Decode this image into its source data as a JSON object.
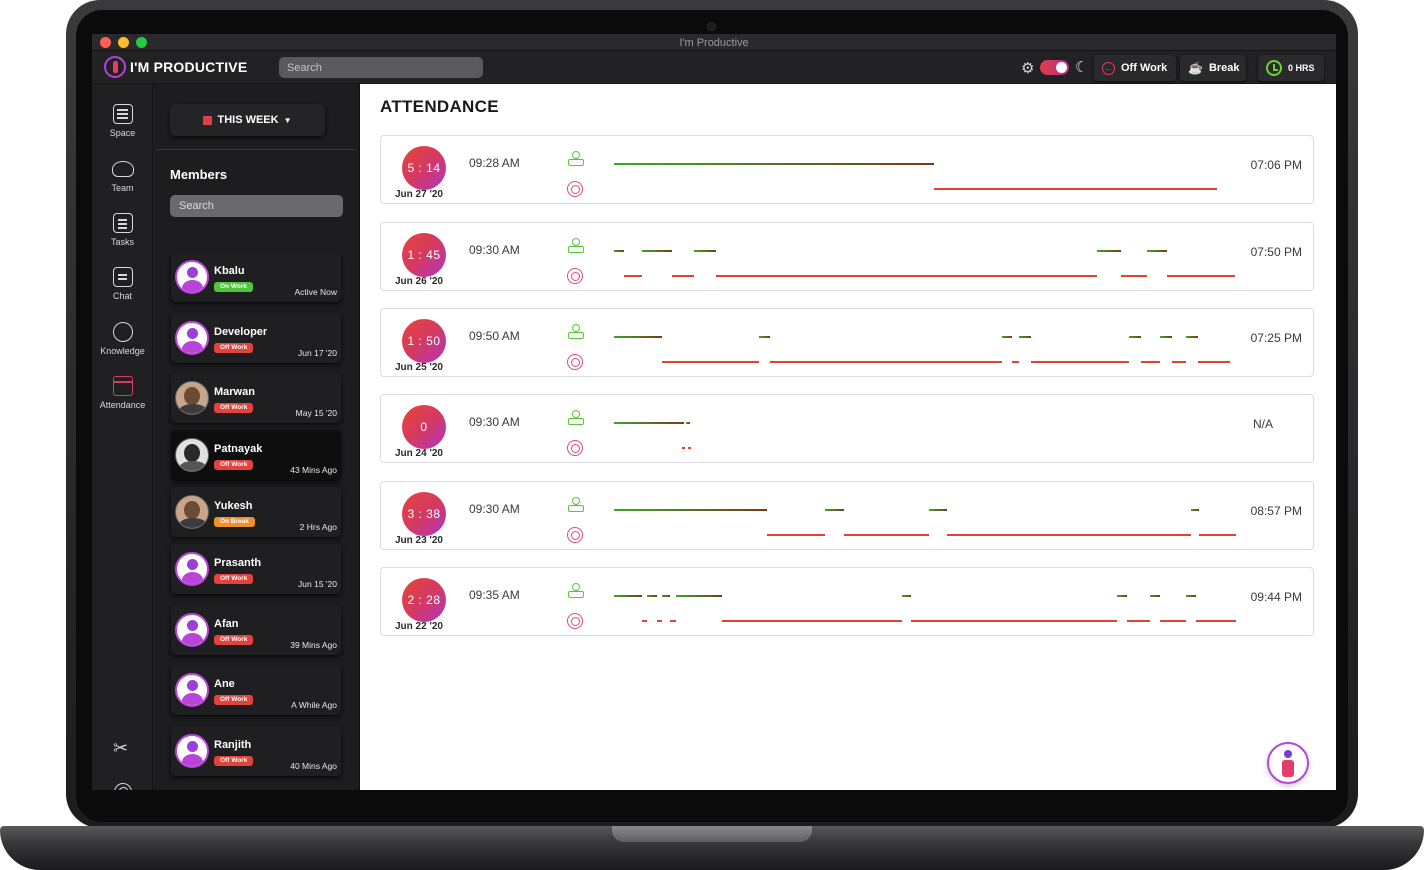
{
  "window": {
    "title": "I'm Productive"
  },
  "topbar": {
    "logo_text": "I'M PRODUCTIVE",
    "search_placeholder": "Search",
    "off_work_label": "Off Work",
    "break_label": "Break",
    "hours_label": "0 HRS"
  },
  "nav": [
    {
      "label": "Space",
      "icon": "space-icon"
    },
    {
      "label": "Team",
      "icon": "team-icon"
    },
    {
      "label": "Tasks",
      "icon": "tasks-icon"
    },
    {
      "label": "Chat",
      "icon": "chat-icon"
    },
    {
      "label": "Knowledge",
      "icon": "knowledge-icon"
    },
    {
      "label": "Attendance",
      "icon": "attendance-icon"
    }
  ],
  "members_panel": {
    "period_label": "THIS WEEK",
    "title": "Members",
    "search_placeholder": "Search",
    "members": [
      {
        "name": "Kbalu",
        "status": "On Work",
        "last_seen": "Active Now"
      },
      {
        "name": "Developer",
        "status": "Off Work",
        "last_seen": "Jun 17 '20"
      },
      {
        "name": "Marwan",
        "status": "Off Work",
        "last_seen": "May 15 '20"
      },
      {
        "name": "Patnayak",
        "status": "Off Work",
        "last_seen": "43 Mins Ago"
      },
      {
        "name": "Yukesh",
        "status": "On Break",
        "last_seen": "2 Hrs Ago"
      },
      {
        "name": "Prasanth",
        "status": "Off Work",
        "last_seen": "Jun 15 '20"
      },
      {
        "name": "Afan",
        "status": "Off Work",
        "last_seen": "39 Mins Ago"
      },
      {
        "name": "Ane",
        "status": "Off Work",
        "last_seen": "A While Ago"
      },
      {
        "name": "Ranjith",
        "status": "Off Work",
        "last_seen": "40 Mins Ago"
      }
    ]
  },
  "attendance": {
    "title": "ATTENDANCE",
    "rows": [
      {
        "duration": "5 : 14",
        "date": "Jun 27 '20",
        "start": "09:28 AM",
        "end": "07:06 PM"
      },
      {
        "duration": "1 : 45",
        "date": "Jun 26 '20",
        "start": "09:30 AM",
        "end": "07:50 PM"
      },
      {
        "duration": "1 : 50",
        "date": "Jun 25 '20",
        "start": "09:50 AM",
        "end": "07:25 PM"
      },
      {
        "duration": "0",
        "date": "Jun 24 '20",
        "start": "09:30 AM",
        "end": "N/A"
      },
      {
        "duration": "3 : 38",
        "date": "Jun 23 '20",
        "start": "09:30 AM",
        "end": "08:57 PM"
      },
      {
        "duration": "2 : 28",
        "date": "Jun 22 '20",
        "start": "09:35 AM",
        "end": "09:44 PM"
      }
    ]
  },
  "colors": {
    "accent": "#e23d4a",
    "work": "#5ac43a",
    "break": "#e2432e",
    "brand": "#b845d8"
  }
}
